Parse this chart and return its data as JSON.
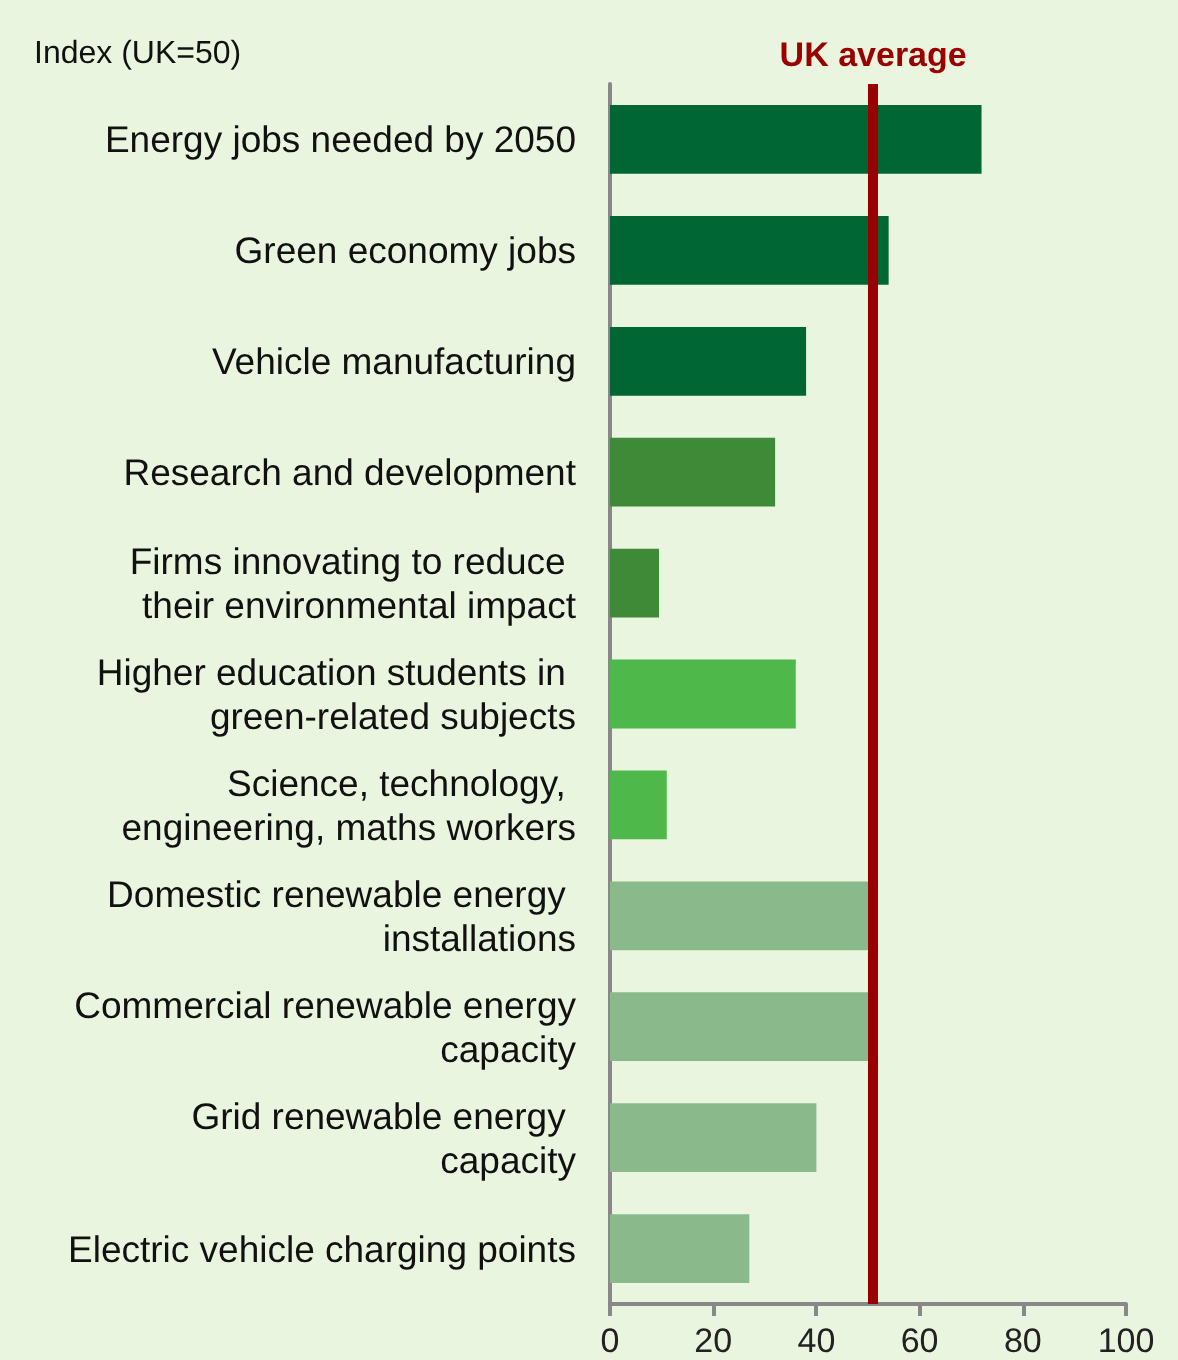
{
  "chart_data": {
    "type": "bar",
    "orientation": "horizontal",
    "xlabel": "Index (UK=50)",
    "categories": [
      "Energy jobs needed by 2050",
      "Green economy jobs",
      "Vehicle manufacturing",
      "Research and development",
      "Firms innovating to reduce their environmental impact",
      "Higher education students in green-related subjects",
      "Science, technology, engineering, maths workers",
      "Domestic renewable energy installations",
      "Commercial renewable energy capacity",
      "Grid renewable energy capacity",
      "Electric vehicle charging points"
    ],
    "values": [
      72,
      54,
      38,
      32,
      9.5,
      36,
      11,
      50,
      50,
      40,
      27
    ],
    "colors": [
      "#006633",
      "#006633",
      "#006633",
      "#3f8a37",
      "#3f8a37",
      "#4fb84b",
      "#4fb84b",
      "#8aba8c",
      "#8aba8c",
      "#8aba8c",
      "#8aba8c"
    ],
    "xlim": [
      0,
      100
    ],
    "xticks": [
      0,
      20,
      40,
      60,
      80,
      100
    ],
    "ref_lines": [
      {
        "axis": "x",
        "value": 51,
        "label": "UK average",
        "color": "#990000",
        "line_style": "solid"
      }
    ]
  }
}
